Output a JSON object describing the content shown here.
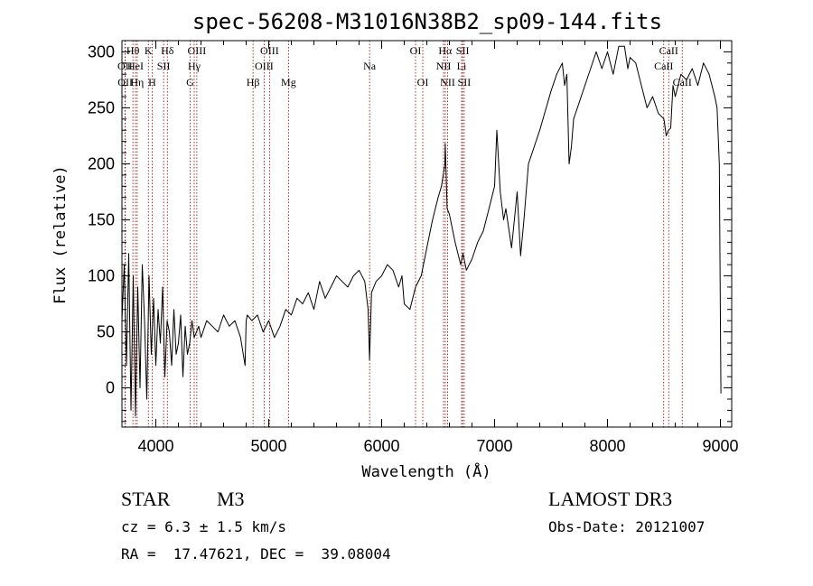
{
  "chart_data": {
    "type": "line",
    "title": "spec-56208-M31016N38B2_sp09-144.fits",
    "xlabel": "Wavelength (Å)",
    "ylabel": "Flux (relative)",
    "xlim": [
      3700,
      9100
    ],
    "ylim": [
      -35,
      310
    ],
    "xticks": [
      4000,
      5000,
      6000,
      7000,
      8000,
      9000
    ],
    "yticks": [
      0,
      50,
      100,
      150,
      200,
      250,
      300
    ],
    "line_color": "#000000",
    "marker_color": "#8b0000",
    "series": [
      {
        "name": "spectrum",
        "x": [
          3700,
          3720,
          3740,
          3760,
          3780,
          3800,
          3820,
          3840,
          3860,
          3880,
          3900,
          3920,
          3940,
          3960,
          3980,
          4000,
          4020,
          4040,
          4060,
          4080,
          4100,
          4120,
          4140,
          4160,
          4180,
          4200,
          4220,
          4240,
          4260,
          4280,
          4300,
          4320,
          4340,
          4360,
          4380,
          4400,
          4450,
          4500,
          4550,
          4600,
          4650,
          4700,
          4750,
          4790,
          4800,
          4810,
          4850,
          4900,
          4950,
          5000,
          5050,
          5100,
          5150,
          5200,
          5250,
          5300,
          5350,
          5400,
          5450,
          5500,
          5550,
          5600,
          5650,
          5700,
          5750,
          5800,
          5850,
          5880,
          5893,
          5910,
          5950,
          6000,
          6050,
          6100,
          6150,
          6180,
          6200,
          6250,
          6300,
          6350,
          6400,
          6450,
          6500,
          6530,
          6560,
          6563,
          6580,
          6600,
          6620,
          6650,
          6700,
          6720,
          6750,
          6800,
          6850,
          6900,
          6950,
          7000,
          7020,
          7050,
          7080,
          7100,
          7150,
          7200,
          7230,
          7260,
          7300,
          7400,
          7500,
          7550,
          7600,
          7620,
          7640,
          7660,
          7680,
          7700,
          7750,
          7800,
          7850,
          7900,
          7950,
          8000,
          8050,
          8100,
          8150,
          8180,
          8200,
          8250,
          8300,
          8350,
          8400,
          8450,
          8500,
          8520,
          8540,
          8560,
          8580,
          8600,
          8650,
          8700,
          8750,
          8800,
          8850,
          8900,
          8950,
          8970,
          8990,
          9000,
          9005
        ],
        "y": [
          60,
          110,
          20,
          120,
          -20,
          100,
          -25,
          90,
          0,
          110,
          60,
          -10,
          100,
          30,
          80,
          20,
          70,
          40,
          90,
          10,
          60,
          50,
          20,
          70,
          30,
          40,
          65,
          10,
          55,
          30,
          40,
          60,
          45,
          50,
          55,
          45,
          60,
          55,
          50,
          65,
          55,
          60,
          45,
          20,
          60,
          65,
          60,
          65,
          50,
          60,
          45,
          55,
          70,
          65,
          80,
          75,
          85,
          70,
          95,
          80,
          90,
          100,
          95,
          90,
          100,
          105,
          95,
          70,
          25,
          85,
          95,
          100,
          110,
          105,
          90,
          100,
          75,
          70,
          90,
          100,
          125,
          150,
          170,
          180,
          200,
          218,
          160,
          155,
          145,
          130,
          110,
          120,
          105,
          115,
          130,
          140,
          160,
          180,
          230,
          175,
          150,
          160,
          125,
          175,
          118,
          150,
          200,
          230,
          265,
          280,
          290,
          270,
          280,
          200,
          215,
          240,
          255,
          270,
          285,
          300,
          285,
          300,
          280,
          305,
          305,
          285,
          295,
          290,
          270,
          250,
          260,
          245,
          240,
          225,
          230,
          232,
          270,
          260,
          280,
          275,
          285,
          270,
          290,
          280,
          260,
          250,
          200,
          60,
          -5
        ]
      }
    ],
    "lines": [
      {
        "name": "Hθ",
        "w": 3797,
        "row": 0
      },
      {
        "name": "OII",
        "w": 3727,
        "row": 1
      },
      {
        "name": "OII",
        "w": 3729,
        "row": 2
      },
      {
        "name": "HeI",
        "w": 3820,
        "row": 1
      },
      {
        "name": "Hη",
        "w": 3835,
        "row": 2
      },
      {
        "name": "K",
        "w": 3934,
        "row": 0
      },
      {
        "name": "SII",
        "w": 4069,
        "row": 1
      },
      {
        "name": "H",
        "w": 3968,
        "row": 2
      },
      {
        "name": "Hδ",
        "w": 4102,
        "row": 0
      },
      {
        "name": "OIII",
        "w": 4363,
        "row": 0
      },
      {
        "name": "Hγ",
        "w": 4340,
        "row": 1
      },
      {
        "name": "G",
        "w": 4304,
        "row": 2
      },
      {
        "name": "OIII",
        "w": 5007,
        "row": 0
      },
      {
        "name": "OIII",
        "w": 4959,
        "row": 1
      },
      {
        "name": "Hβ",
        "w": 4861,
        "row": 2
      },
      {
        "name": "Mg",
        "w": 5175,
        "row": 2
      },
      {
        "name": "Na",
        "w": 5893,
        "row": 1
      },
      {
        "name": "OI",
        "w": 6300,
        "row": 0
      },
      {
        "name": "OI",
        "w": 6364,
        "row": 2
      },
      {
        "name": "Hα",
        "w": 6563,
        "row": 0
      },
      {
        "name": "NII",
        "w": 6548,
        "row": 1
      },
      {
        "name": "NII",
        "w": 6584,
        "row": 2
      },
      {
        "name": "SII",
        "w": 6717,
        "row": 0
      },
      {
        "name": "Li",
        "w": 6708,
        "row": 1
      },
      {
        "name": "SII",
        "w": 6731,
        "row": 2
      },
      {
        "name": "CaII",
        "w": 8542,
        "row": 0
      },
      {
        "name": "CaII",
        "w": 8498,
        "row": 1
      },
      {
        "name": "CaII",
        "w": 8662,
        "row": 2
      }
    ]
  },
  "info": {
    "class": "STAR",
    "subclass": "M3",
    "cz": "cz = 6.3 ± 1.5 km/s",
    "coords": "RA =  17.47621, DEC =  39.08004",
    "survey": "LAMOST DR3",
    "obsdate": "Obs-Date: 20121007"
  }
}
